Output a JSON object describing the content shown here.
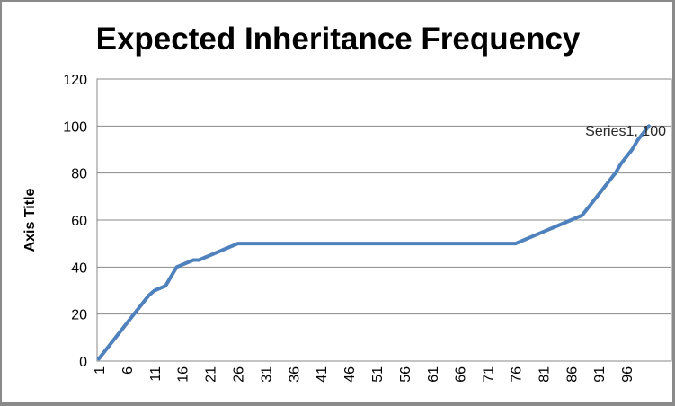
{
  "chart_data": {
    "type": "line",
    "title": "Expected Inheritance Frequency",
    "xlabel": "",
    "ylabel": "Axis Title",
    "ylim": [
      0,
      120
    ],
    "yticks": [
      0,
      20,
      40,
      60,
      80,
      100,
      120
    ],
    "xticks": [
      1,
      6,
      11,
      16,
      21,
      26,
      31,
      36,
      41,
      46,
      51,
      56,
      61,
      66,
      71,
      76,
      81,
      86,
      91,
      96
    ],
    "x_range": [
      1,
      100
    ],
    "grid": "horizontal",
    "legend": "none",
    "data_label": "Series1, 100",
    "series": [
      {
        "name": "Series1",
        "color": "#4F81BD",
        "final_value": 100,
        "values": [
          1,
          4,
          7,
          10,
          13,
          16,
          19,
          22,
          25,
          28,
          30,
          31,
          32,
          36,
          40,
          41,
          42,
          43,
          43,
          44,
          45,
          46,
          47,
          48,
          49,
          50,
          50,
          50,
          50,
          50,
          50,
          50,
          50,
          50,
          50,
          50,
          50,
          50,
          50,
          50,
          50,
          50,
          50,
          50,
          50,
          50,
          50,
          50,
          50,
          50,
          50,
          50,
          50,
          50,
          50,
          50,
          50,
          50,
          50,
          50,
          50,
          50,
          50,
          50,
          50,
          50,
          50,
          50,
          50,
          50,
          50,
          50,
          50,
          50,
          50,
          50,
          51,
          52,
          53,
          54,
          55,
          56,
          57,
          58,
          59,
          60,
          61,
          62,
          65,
          68,
          71,
          74,
          77,
          80,
          84,
          87,
          90,
          94,
          97,
          100
        ]
      }
    ],
    "colors": {
      "line": "#4F81BD",
      "gridline": "#898989",
      "plot_border": "#898989",
      "axis_text": "#000000",
      "frame_border": "#8a8a8a",
      "background": "#ffffff"
    }
  }
}
